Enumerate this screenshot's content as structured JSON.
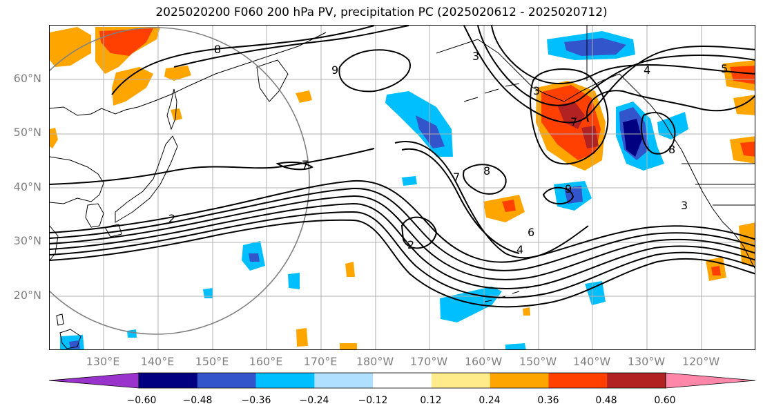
{
  "title": "2025020200 F060 200 hPa PV, precipitation PC (2025020612 - 2025020712)",
  "lat_labels": [
    "60°N",
    "50°N",
    "40°N",
    "30°N",
    "20°N"
  ],
  "lon_labels": [
    "130°E",
    "140°E",
    "150°E",
    "160°E",
    "170°E",
    "180°W",
    "170°W",
    "160°W",
    "150°W",
    "140°W",
    "130°W",
    "120°W"
  ],
  "contour_labels": [
    "8",
    "9",
    "7",
    "3",
    "4",
    "5",
    "2",
    "2",
    "7",
    "8",
    "9",
    "6",
    "4",
    "7",
    "3",
    "8",
    "3"
  ],
  "colorbar": {
    "tick_labels": [
      "−0.60",
      "−0.48",
      "−0.36",
      "−0.24",
      "−0.12",
      "0.12",
      "0.24",
      "0.36",
      "0.48",
      "0.60"
    ],
    "colors": [
      "#9933cc",
      "#000080",
      "#3355cc",
      "#00bfff",
      "#b0e0ff",
      "#ffffff",
      "#ffeb8a",
      "#ffa500",
      "#ff4000",
      "#b22222",
      "#ff88aa"
    ]
  },
  "field_colors": {
    "pos_light": "#ffeb8a",
    "pos_mid": "#ffa500",
    "pos_high": "#ff4000",
    "pos_max": "#b22222",
    "neg_light": "#b0e0ff",
    "neg_mid": "#00bfff",
    "neg_high": "#3355cc",
    "neg_max": "#000080"
  }
}
